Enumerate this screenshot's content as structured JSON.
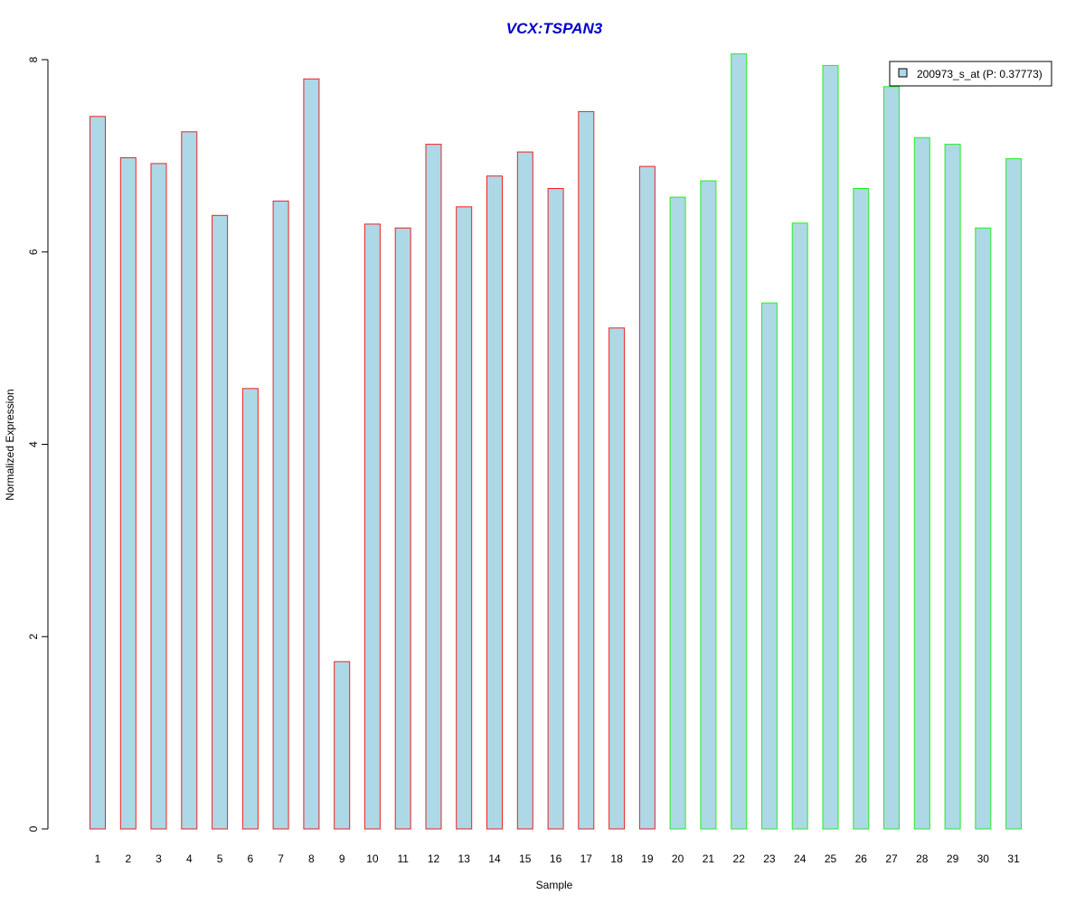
{
  "chart_data": {
    "type": "bar",
    "title": "VCX:TSPAN3",
    "xlabel": "Sample",
    "ylabel": "Normalized Expression",
    "ylim": [
      0,
      8
    ],
    "yticks": [
      "0",
      "2",
      "4",
      "6",
      "8"
    ],
    "categories": [
      "1",
      "2",
      "3",
      "4",
      "5",
      "6",
      "7",
      "8",
      "9",
      "10",
      "11",
      "12",
      "13",
      "14",
      "15",
      "16",
      "17",
      "18",
      "19",
      "20",
      "21",
      "22",
      "23",
      "24",
      "25",
      "26",
      "27",
      "28",
      "29",
      "30",
      "31"
    ],
    "series": [
      {
        "name": "200973_s_at (P: 0.37773)",
        "values": [
          7.41,
          6.98,
          6.92,
          7.25,
          6.38,
          4.58,
          6.53,
          7.8,
          1.74,
          6.29,
          6.25,
          7.12,
          6.47,
          6.79,
          7.04,
          6.66,
          7.46,
          5.21,
          6.89,
          6.57,
          6.74,
          8.06,
          5.47,
          6.3,
          7.94,
          6.66,
          7.72,
          7.19,
          7.12,
          6.25,
          6.97
        ]
      }
    ],
    "groups": [
      {
        "samples": "1-19",
        "border_color": "#ee2222"
      },
      {
        "samples": "20-31",
        "border_color": "#22ee22"
      }
    ],
    "fill_color": "#add8e6",
    "title_color": "#0000cc",
    "legend_position": "top-right",
    "grid": false
  }
}
